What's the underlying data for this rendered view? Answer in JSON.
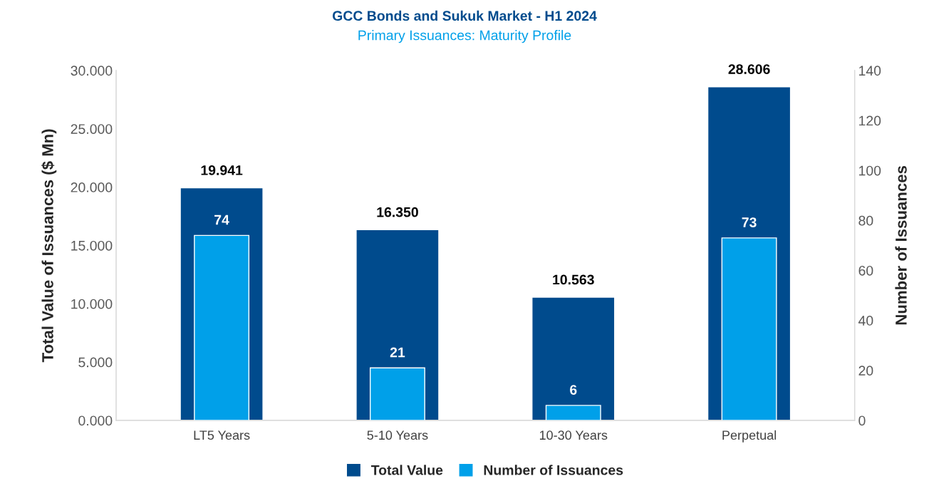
{
  "chart_data": {
    "type": "bar",
    "title": "GCC Bonds and Sukuk Market - H1 2024",
    "subtitle": "Primary Issuances: Maturity Profile",
    "ylabel": "Total Value of Issuances ($ Mn)",
    "y2label": "Number of Issuances",
    "categories": [
      "LT5 Years",
      "5-10 Years",
      "10-30 Years",
      "Perpetual"
    ],
    "series": [
      {
        "name": "Total Value",
        "color": "#004b8d",
        "values": [
          19.941,
          16.35,
          10.563,
          28.606
        ],
        "value_labels": [
          "19.941",
          "16.350",
          "10.563",
          "28.606"
        ]
      },
      {
        "name": "Number of Issuances",
        "color": "#00a0e9",
        "axis": "y2",
        "values": [
          74,
          21,
          6,
          73
        ],
        "value_labels": [
          "74",
          "21",
          "6",
          "73"
        ]
      }
    ],
    "ylim": [
      0,
      30
    ],
    "yticks": [
      {
        "value": 0,
        "label": "0.000"
      },
      {
        "value": 5,
        "label": "5.000"
      },
      {
        "value": 10,
        "label": "10.000"
      },
      {
        "value": 15,
        "label": "15.000"
      },
      {
        "value": 20,
        "label": "20.000"
      },
      {
        "value": 25,
        "label": "25.000"
      },
      {
        "value": 30,
        "label": "30.000"
      }
    ],
    "y2lim": [
      0,
      140
    ],
    "y2ticks": [
      0,
      20,
      40,
      60,
      80,
      100,
      120,
      140
    ],
    "grid": false,
    "legend": "bottom"
  }
}
